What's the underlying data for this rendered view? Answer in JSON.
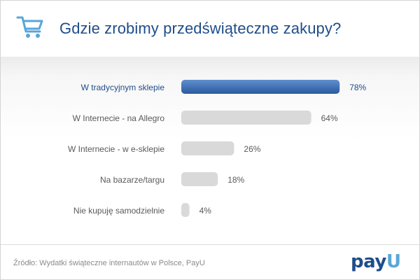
{
  "header": {
    "title": "Gdzie zrobimy przedświąteczne zakupy?",
    "icon": "shopping-cart-icon"
  },
  "chart_data": {
    "type": "bar",
    "orientation": "horizontal",
    "title": "Gdzie zrobimy przedświąteczne zakupy?",
    "categories": [
      "W tradycyjnym sklepie",
      "W Internecie - na Allegro",
      "W Internecie - w e-sklepie",
      "Na bazarze/targu",
      "Nie kupuję samodzielnie"
    ],
    "values": [
      78,
      64,
      26,
      18,
      4
    ],
    "value_labels": [
      "78%",
      "64%",
      "26%",
      "18%",
      "4%"
    ],
    "unit": "%",
    "xlim": [
      0,
      100
    ],
    "grid": false,
    "highlighted_index": 0,
    "colors": {
      "highlight": "#2a5a9c",
      "highlight_light": "#5f8fcf",
      "bar": "#d9d9d9",
      "highlight_text": "#1f4d8a",
      "text": "#5a5a5a"
    }
  },
  "footer": {
    "source": "Źródło: Wydatki świąteczne internautów w Polsce, PayU",
    "brand_part1": "pay",
    "brand_part2": "U"
  }
}
